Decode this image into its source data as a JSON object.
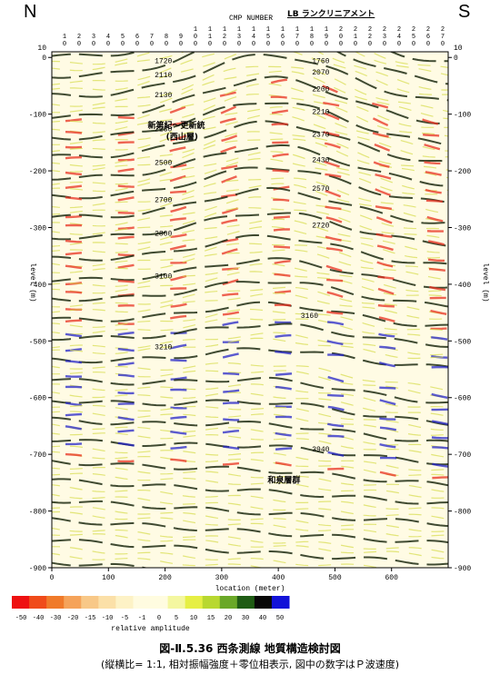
{
  "header": {
    "north_label": "N",
    "south_label": "S",
    "cmp_label": "CMP NUMBER",
    "lineament_label": "LB ランクリニアメント"
  },
  "chart_data": {
    "type": "heatmap",
    "xlabel": "location (meter)",
    "ylabel": "level (m)",
    "xlim": [
      0,
      700
    ],
    "ylim": [
      -900,
      10
    ],
    "x_ticks": [
      0,
      100,
      200,
      300,
      400,
      500,
      600
    ],
    "y_ticks": [
      0,
      -100,
      -200,
      -300,
      -400,
      -500,
      -600,
      -700,
      -800,
      -900
    ],
    "y_top_label": "10",
    "cmp_numbers": [
      "10",
      "20",
      "30",
      "40",
      "50",
      "60",
      "70",
      "80",
      "90",
      "100",
      "110",
      "120",
      "130",
      "140",
      "150",
      "160",
      "170",
      "180",
      "190",
      "200",
      "210",
      "220",
      "230",
      "240",
      "250",
      "260",
      "270"
    ],
    "velocity_labels": [
      {
        "text": "1720",
        "x": 197,
        "y": -5
      },
      {
        "text": "2110",
        "x": 197,
        "y": -30
      },
      {
        "text": "2130",
        "x": 197,
        "y": -65
      },
      {
        "text": "2230",
        "x": 197,
        "y": -125
      },
      {
        "text": "2500",
        "x": 197,
        "y": -185
      },
      {
        "text": "2700",
        "x": 197,
        "y": -250
      },
      {
        "text": "2800",
        "x": 197,
        "y": -310
      },
      {
        "text": "3100",
        "x": 197,
        "y": -385
      },
      {
        "text": "3210",
        "x": 197,
        "y": -510
      },
      {
        "text": "1760",
        "x": 475,
        "y": -5
      },
      {
        "text": "2070",
        "x": 475,
        "y": -25
      },
      {
        "text": "2200",
        "x": 475,
        "y": -55
      },
      {
        "text": "2210",
        "x": 475,
        "y": -95
      },
      {
        "text": "2370",
        "x": 475,
        "y": -135
      },
      {
        "text": "2430",
        "x": 475,
        "y": -180
      },
      {
        "text": "2570",
        "x": 475,
        "y": -230
      },
      {
        "text": "2720",
        "x": 475,
        "y": -295
      },
      {
        "text": "3160",
        "x": 455,
        "y": -455
      },
      {
        "text": "3940",
        "x": 475,
        "y": -690
      }
    ],
    "annotations": [
      {
        "text": "新第紀～更新統",
        "x": 220,
        "y": -120
      },
      {
        "text": "(西山層)",
        "x": 230,
        "y": -140
      },
      {
        "text": "和泉層群",
        "x": 410,
        "y": -745
      }
    ],
    "colorbar": {
      "label": "relative amplitude",
      "ticks": [
        "-50",
        "-40",
        "-30",
        "-20",
        "-15",
        "-10",
        "-5",
        "-1",
        "0",
        "5",
        "10",
        "15",
        "20",
        "30",
        "40",
        "50"
      ],
      "colors": [
        "#ee1111",
        "#f04b1a",
        "#f07a2a",
        "#f5a35a",
        "#f8c888",
        "#fbe0a8",
        "#fdf2c6",
        "#fffbe0",
        "#fffce0",
        "#f4f7a0",
        "#e6ef44",
        "#b8d830",
        "#6aa828",
        "#1f5c14",
        "#080808",
        "#1212d8"
      ]
    }
  },
  "caption": {
    "title": "図-Ⅱ.5.36  西条測線 地質構造検討図",
    "note": "(縦横比= 1:1,  相対振幅強度＋零位相表示,  図中の数字はＰ波速度)"
  }
}
